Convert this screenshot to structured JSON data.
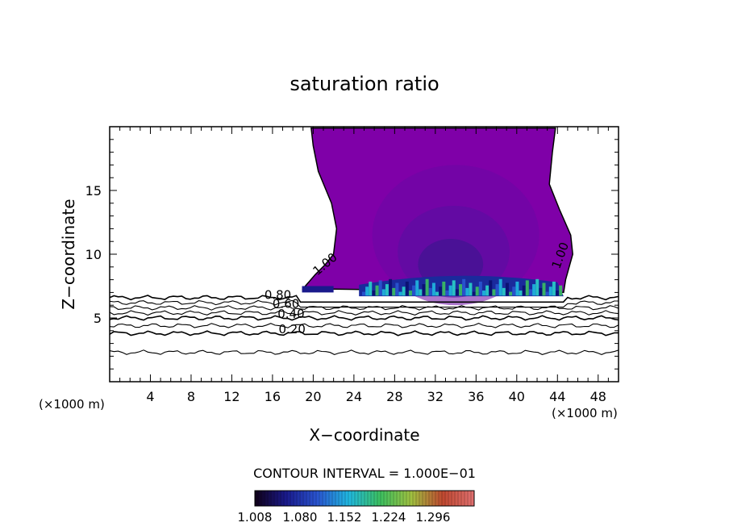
{
  "chart_data": {
    "type": "heatmap",
    "title": "saturation ratio",
    "xlabel": "X−coordinate",
    "ylabel": "Z−coordinate",
    "x_unit_left": "(×1000 m)",
    "x_unit_right": "(×1000 m)",
    "xlim": [
      0,
      50
    ],
    "ylim": [
      0,
      20
    ],
    "xticks": [
      4,
      8,
      12,
      16,
      20,
      24,
      28,
      32,
      36,
      40,
      44,
      48
    ],
    "yticks": [
      5,
      10,
      15
    ],
    "contour_interval_label": "CONTOUR INTERVAL = 1.000E−01",
    "contour_labels": [
      {
        "text": "0.80",
        "x": 15.2,
        "y": 6.5
      },
      {
        "text": "0.60",
        "x": 16.0,
        "y": 5.8
      },
      {
        "text": "0.40",
        "x": 16.5,
        "y": 5.0
      },
      {
        "text": "0.20",
        "x": 16.6,
        "y": 3.8
      },
      {
        "text": "1.00",
        "x": 20.4,
        "y": 8.3
      },
      {
        "text": "1.00",
        "x": 44.2,
        "y": 8.8
      }
    ],
    "colorbar": {
      "ticks": [
        "1.008",
        "1.080",
        "1.152",
        "1.224",
        "1.296"
      ],
      "colors": [
        "#100018",
        "#1a1a8c",
        "#2a55d0",
        "#20b8e0",
        "#3cc060",
        "#a0c040",
        "#c04830",
        "#e07070"
      ]
    },
    "saturated_region": {
      "color": "#7f00a8",
      "boundary_left": [
        [
          19,
          7.3
        ],
        [
          20.2,
          8.4
        ],
        [
          21.2,
          9.2
        ],
        [
          22.0,
          10.0
        ],
        [
          22.3,
          12.0
        ],
        [
          21.8,
          14.0
        ],
        [
          20.5,
          16.5
        ],
        [
          20.0,
          18.5
        ],
        [
          19.8,
          19.9
        ]
      ],
      "boundary_right": [
        [
          43.8,
          19.9
        ],
        [
          43.5,
          18.0
        ],
        [
          43.2,
          15.5
        ],
        [
          44.2,
          13.5
        ],
        [
          45.3,
          11.5
        ],
        [
          45.5,
          10.0
        ],
        [
          44.8,
          8.0
        ],
        [
          44.6,
          7.0
        ]
      ]
    },
    "base_contours": [
      {
        "level": "0.80",
        "z": 6.6
      },
      {
        "level": "0.70",
        "z": 6.2
      },
      {
        "level": "0.60",
        "z": 5.8
      },
      {
        "level": "0.50",
        "z": 5.4
      },
      {
        "level": "0.40",
        "z": 5.0
      },
      {
        "level": "0.30",
        "z": 4.4
      },
      {
        "level": "0.20",
        "z": 3.8
      },
      {
        "level": "0.10",
        "z": 2.3
      }
    ]
  }
}
